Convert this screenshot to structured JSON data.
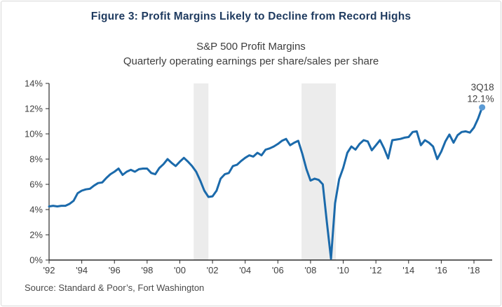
{
  "header": {
    "figure_title": "Figure 3: Profit Margins Likely to Decline from Record Highs",
    "chart_title": "S&P 500 Profit Margins",
    "chart_subtitle": "Quarterly operating earnings per share/sales per share"
  },
  "footer": {
    "source": "Source: Standard & Poor’s, Fort Washington"
  },
  "chart_data": {
    "type": "line",
    "title": "S&P 500 Profit Margins",
    "subtitle": "Quarterly operating earnings per share/sales per share",
    "x_start": 1992.0,
    "x_step": 0.25,
    "x_unit": "quarterly (year fraction)",
    "values": [
      4.25,
      4.3,
      4.25,
      4.3,
      4.3,
      4.45,
      4.7,
      5.3,
      5.5,
      5.6,
      5.65,
      5.9,
      6.1,
      6.15,
      6.5,
      6.8,
      7.0,
      7.25,
      6.75,
      7.0,
      7.15,
      7.0,
      7.2,
      7.25,
      7.25,
      6.9,
      6.8,
      7.3,
      7.6,
      8.0,
      7.7,
      7.45,
      7.8,
      8.1,
      7.8,
      7.45,
      7.0,
      6.3,
      5.5,
      5.0,
      5.05,
      5.5,
      6.45,
      6.8,
      6.9,
      7.45,
      7.55,
      7.85,
      8.1,
      8.3,
      8.2,
      8.5,
      8.3,
      8.75,
      8.85,
      9.0,
      9.2,
      9.45,
      9.6,
      9.1,
      9.3,
      9.45,
      8.4,
      7.2,
      6.3,
      6.45,
      6.35,
      6.0,
      3.0,
      0.1,
      4.5,
      6.4,
      7.3,
      8.5,
      9.0,
      8.75,
      9.2,
      9.5,
      9.4,
      8.7,
      9.1,
      9.5,
      8.85,
      8.05,
      9.5,
      9.55,
      9.6,
      9.7,
      9.75,
      10.15,
      10.2,
      9.1,
      9.5,
      9.3,
      9.0,
      8.0,
      8.6,
      9.4,
      9.95,
      9.3,
      9.9,
      10.15,
      10.2,
      10.1,
      10.5,
      11.2,
      12.1
    ],
    "x_tick_years": [
      1992,
      1994,
      1996,
      1998,
      2000,
      2002,
      2004,
      2006,
      2008,
      2010,
      2012,
      2014,
      2016,
      2018
    ],
    "x_tick_labels": [
      "'92",
      "'94",
      "'96",
      "'98",
      "'00",
      "'02",
      "'04",
      "'06",
      "'08",
      "'10",
      "'12",
      "'14",
      "'16",
      "'18"
    ],
    "y_ticks": [
      0,
      2,
      4,
      6,
      8,
      10,
      12,
      14
    ],
    "y_tick_suffix": "%",
    "ylim": [
      0,
      14
    ],
    "xlim": [
      1992,
      2019.1
    ],
    "grid": false,
    "legend": "none",
    "recession_bands": [
      [
        2000.85,
        2001.75
      ],
      [
        2007.45,
        2009.55
      ]
    ],
    "annotation": {
      "lines": [
        "3Q18",
        "12.1%"
      ],
      "x": 2018.5,
      "y": 12.1
    },
    "colors": {
      "line": "#1b6aab",
      "marker": "#5b9bd5",
      "band": "#ececec",
      "axis": "#2b2b2b",
      "tick_text": "#3f3f3f",
      "annotation_text": "#3f3f3f"
    }
  }
}
